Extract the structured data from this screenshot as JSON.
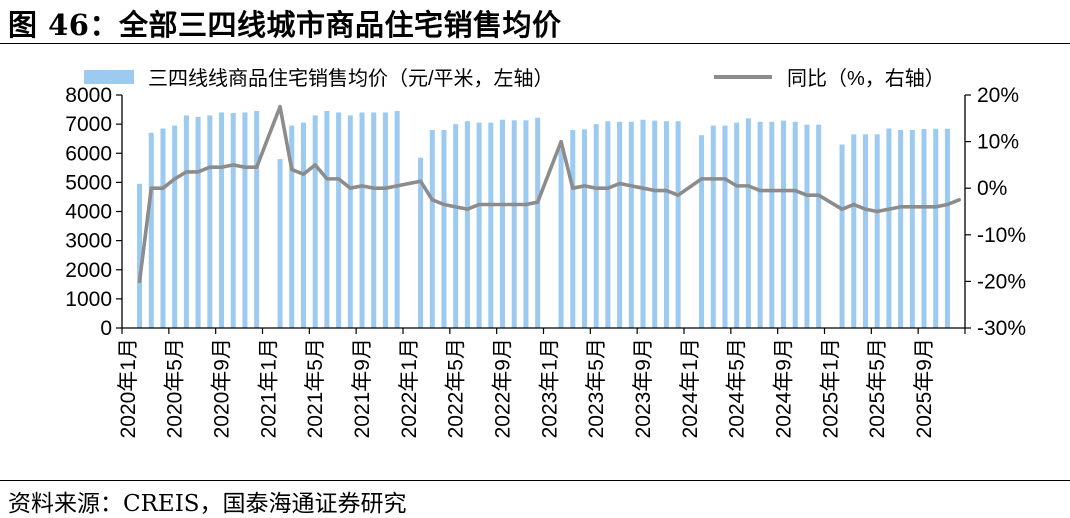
{
  "title": "图 46：全部三四线城市商品住宅销售均价",
  "source": "资料来源：CREIS，国泰海通证券研究",
  "chart_data": {
    "type": "bar+line",
    "categories": [
      "2020年1月",
      "2020年2月",
      "2020年3月",
      "2020年4月",
      "2020年5月",
      "2020年6月",
      "2020年7月",
      "2020年8月",
      "2020年9月",
      "2020年10月",
      "2020年11月",
      "2020年12月",
      "2021年1月",
      "2021年2月",
      "2021年3月",
      "2021年4月",
      "2021年5月",
      "2021年6月",
      "2021年7月",
      "2021年8月",
      "2021年9月",
      "2021年10月",
      "2021年11月",
      "2021年12月",
      "2022年1月",
      "2022年2月",
      "2022年3月",
      "2022年4月",
      "2022年5月",
      "2022年6月",
      "2022年7月",
      "2022年8月",
      "2022年9月",
      "2022年10月",
      "2022年11月",
      "2022年12月",
      "2023年1月",
      "2023年2月",
      "2023年3月",
      "2023年4月",
      "2023年5月",
      "2023年6月",
      "2023年7月",
      "2023年8月",
      "2023年9月",
      "2023年10月",
      "2023年11月",
      "2023年12月",
      "2024年1月",
      "2024年2月",
      "2024年3月",
      "2024年4月",
      "2024年5月",
      "2024年6月",
      "2024年7月",
      "2024年8月",
      "2024年9月",
      "2024年10月",
      "2024年11月",
      "2024年12月",
      "2025年1月",
      "2025年2月",
      "2025年3月",
      "2025年4月",
      "2025年5月",
      "2025年6月",
      "2025年7月",
      "2025年8月",
      "2025年9月",
      "2025年10月",
      "2025年11月",
      "2025年12月"
    ],
    "tick_labels": [
      "2020年1月",
      "2020年5月",
      "2020年9月",
      "2021年1月",
      "2021年5月",
      "2021年9月",
      "2022年1月",
      "2022年5月",
      "2022年9月",
      "2023年1月",
      "2023年5月",
      "2023年9月",
      "2024年1月",
      "2024年5月",
      "2024年9月",
      "2025年1月",
      "2025年5月",
      "2025年9月"
    ],
    "series": [
      {
        "name": "三四线线商品住宅销售均价（元/平米，左轴）",
        "type": "bar",
        "axis": "left",
        "color": "#9dcaf1",
        "values": [
          null,
          4950,
          6700,
          6850,
          6950,
          7300,
          7250,
          7300,
          7400,
          7380,
          7400,
          7450,
          null,
          5800,
          6950,
          7050,
          7300,
          7450,
          7400,
          7300,
          7400,
          7400,
          7400,
          7450,
          null,
          5850,
          6800,
          6800,
          7000,
          7100,
          7050,
          7050,
          7150,
          7130,
          7130,
          7220,
          null,
          6150,
          6800,
          6820,
          7000,
          7100,
          7080,
          7080,
          7150,
          7120,
          7100,
          7100,
          null,
          6620,
          6950,
          6950,
          7050,
          7200,
          7080,
          7080,
          7120,
          7080,
          6980,
          6980,
          null,
          6300,
          6650,
          6650,
          6650,
          6850,
          6800,
          6800,
          6830,
          6840,
          6840,
          null
        ]
      },
      {
        "name": "同比（%，右轴）",
        "type": "line",
        "axis": "right",
        "color": "#8c8c8c",
        "values": [
          null,
          -20,
          0,
          0,
          2,
          3.5,
          3.5,
          4.5,
          4.5,
          5,
          4.5,
          4.5,
          null,
          17.5,
          4,
          3,
          5,
          2,
          2,
          0,
          0.5,
          0,
          0,
          0.5,
          null,
          1.5,
          -2.5,
          -3.5,
          -4,
          -4.5,
          -3.5,
          -3.5,
          -3.5,
          -3.5,
          -3.5,
          -3,
          null,
          10,
          0,
          0.5,
          0,
          0,
          1,
          0.5,
          0,
          -0.5,
          -0.5,
          -1.5,
          null,
          2,
          2,
          2,
          0.5,
          0.5,
          -0.5,
          -0.5,
          -0.5,
          -0.5,
          -1.5,
          -1.5,
          null,
          -4.5,
          -3.5,
          -4.5,
          -5,
          -4.5,
          -4,
          -4,
          -4,
          -4,
          -3.5,
          -2.5
        ]
      }
    ],
    "left_axis": {
      "ylim": [
        0,
        8000
      ],
      "ticks": [
        0,
        1000,
        2000,
        3000,
        4000,
        5000,
        6000,
        7000,
        8000
      ]
    },
    "right_axis": {
      "ylim": [
        -30,
        20
      ],
      "ticks": [
        "-30%",
        "-20%",
        "-10%",
        "0%",
        "10%",
        "20%"
      ]
    },
    "legend": "top",
    "grid": false
  }
}
